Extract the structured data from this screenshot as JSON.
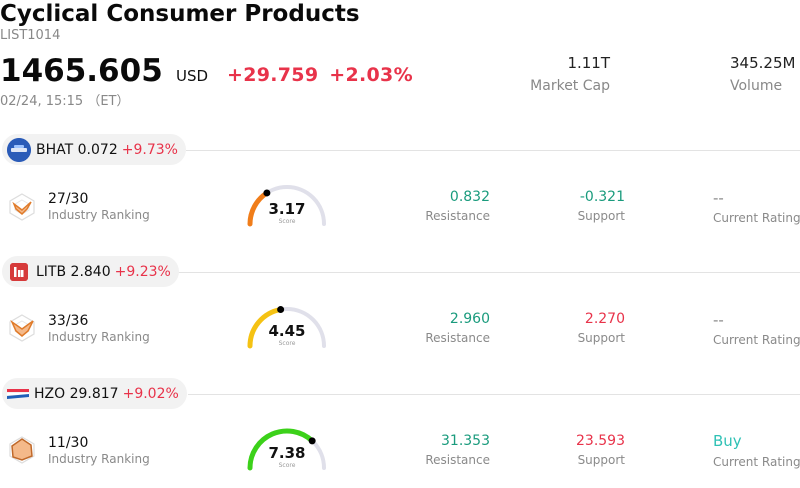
{
  "header": {
    "title": "Cyclical Consumer Products",
    "code": "LIST1014",
    "price": "1465.605",
    "currency": "USD",
    "change": "+29.759",
    "change_pct": "+2.03%",
    "time": "02/24, 15:15 （ET）",
    "market_cap": {
      "value": "1.11T",
      "label": "Market Cap"
    },
    "volume": {
      "value": "345.25M",
      "label": "Volume"
    }
  },
  "colors": {
    "up": "#e8334a",
    "support_green": "#1a9b7d",
    "buy": "#2fc1b5"
  },
  "stocks": [
    {
      "symbol": "BHAT",
      "price": "0.072",
      "change_pct": "+9.73%",
      "logo_icon": "blue-hat-logo-icon",
      "rank": "27/30",
      "rank_label": "Industry Ranking",
      "score": "3.17",
      "score_value": 3.17,
      "score_label": "Score",
      "resistance": "0.832",
      "resistance_label": "Resistance",
      "support": "-0.321",
      "support_label": "Support",
      "rating": "--",
      "rating_label": "Current Rating"
    },
    {
      "symbol": "LITB",
      "price": "2.840",
      "change_pct": "+9.23%",
      "logo_icon": "litb-logo-icon",
      "rank": "33/36",
      "rank_label": "Industry Ranking",
      "score": "4.45",
      "score_value": 4.45,
      "score_label": "Score",
      "resistance": "2.960",
      "resistance_label": "Resistance",
      "support": "2.270",
      "support_label": "Support",
      "rating": "--",
      "rating_label": "Current Rating"
    },
    {
      "symbol": "HZO",
      "price": "29.817",
      "change_pct": "+9.02%",
      "logo_icon": "marinemax-logo-icon",
      "rank": "11/30",
      "rank_label": "Industry Ranking",
      "score": "7.38",
      "score_value": 7.38,
      "score_label": "Score",
      "resistance": "31.353",
      "resistance_label": "Resistance",
      "support": "23.593",
      "support_label": "Support",
      "rating": "Buy",
      "rating_label": "Current Rating"
    }
  ]
}
